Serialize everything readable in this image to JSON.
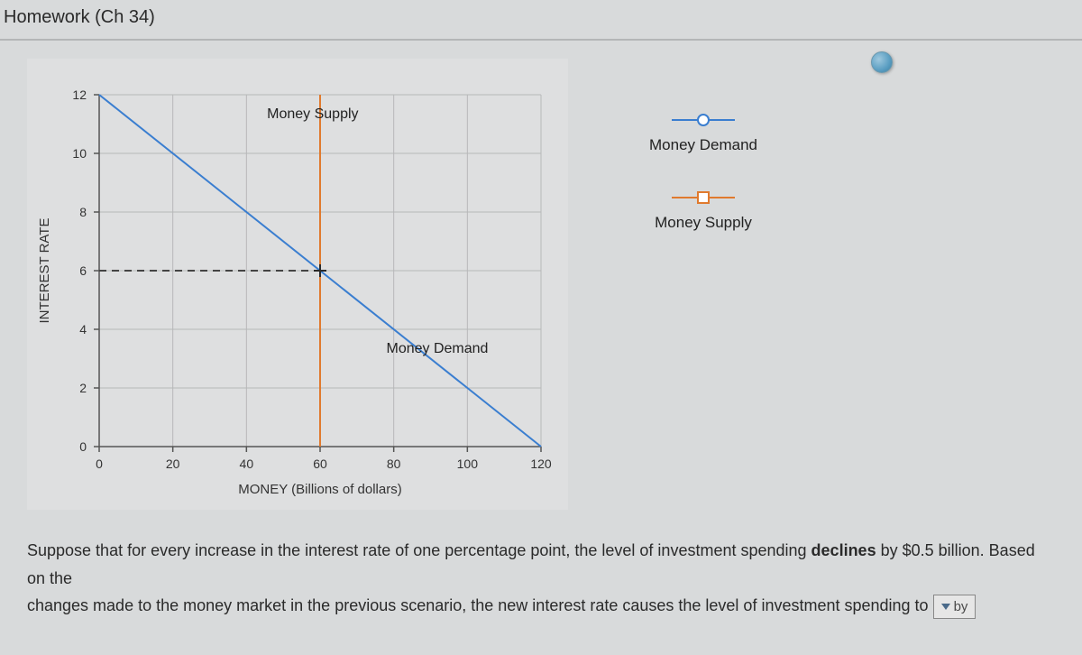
{
  "header": {
    "title": "Homework (Ch 34)"
  },
  "chart": {
    "type": "line",
    "background_color": "#dedfe0",
    "grid_color": "#b7b8b9",
    "axis_color": "#555555",
    "x": {
      "label": "MONEY (Billions of dollars)",
      "min": 0,
      "max": 120,
      "tick_step": 20,
      "ticks": [
        0,
        20,
        40,
        60,
        80,
        100,
        120
      ]
    },
    "y": {
      "label": "INTEREST RATE",
      "min": 0,
      "max": 12,
      "tick_step": 2,
      "ticks": [
        0,
        2,
        4,
        6,
        8,
        10,
        12
      ]
    },
    "series": {
      "money_demand": {
        "label_on_chart": "Money Demand",
        "label_pos": {
          "x": 78,
          "y": 3.2
        },
        "color": "#3a7ed0",
        "marker": {
          "shape": "circle",
          "fill": "#ffffff",
          "stroke": "#3a7ed0"
        },
        "line_width": 2,
        "points": [
          {
            "x": 0,
            "y": 12
          },
          {
            "x": 120,
            "y": 0
          }
        ]
      },
      "money_supply": {
        "label_on_chart": "Money Supply",
        "label_pos": {
          "x": 58,
          "y": 11.2
        },
        "color": "#e07a2e",
        "marker": {
          "shape": "square",
          "fill": "#ffffff",
          "stroke": "#e07a2e"
        },
        "line_width": 2,
        "x_value": 60
      }
    },
    "guides": {
      "equilibrium": {
        "y": 6,
        "x_end": 60,
        "color": "#444444",
        "dash": "8 6",
        "line_width": 2,
        "cross_marker_color": "#2a2a2a"
      }
    },
    "legend": [
      {
        "label": "Money Demand",
        "series": "money_demand"
      },
      {
        "label": "Money Supply",
        "series": "money_supply"
      }
    ]
  },
  "question": {
    "line1_prefix": "Suppose that for every increase in the interest rate of one percentage point, the level of investment spending ",
    "declines_word": "declines",
    "line1_suffix": " by $0.5 billion. Based on the",
    "line2_prefix": "changes made to the money market in the previous scenario, the new interest rate causes the level of investment spending to ",
    "dropdown_text": "by"
  }
}
